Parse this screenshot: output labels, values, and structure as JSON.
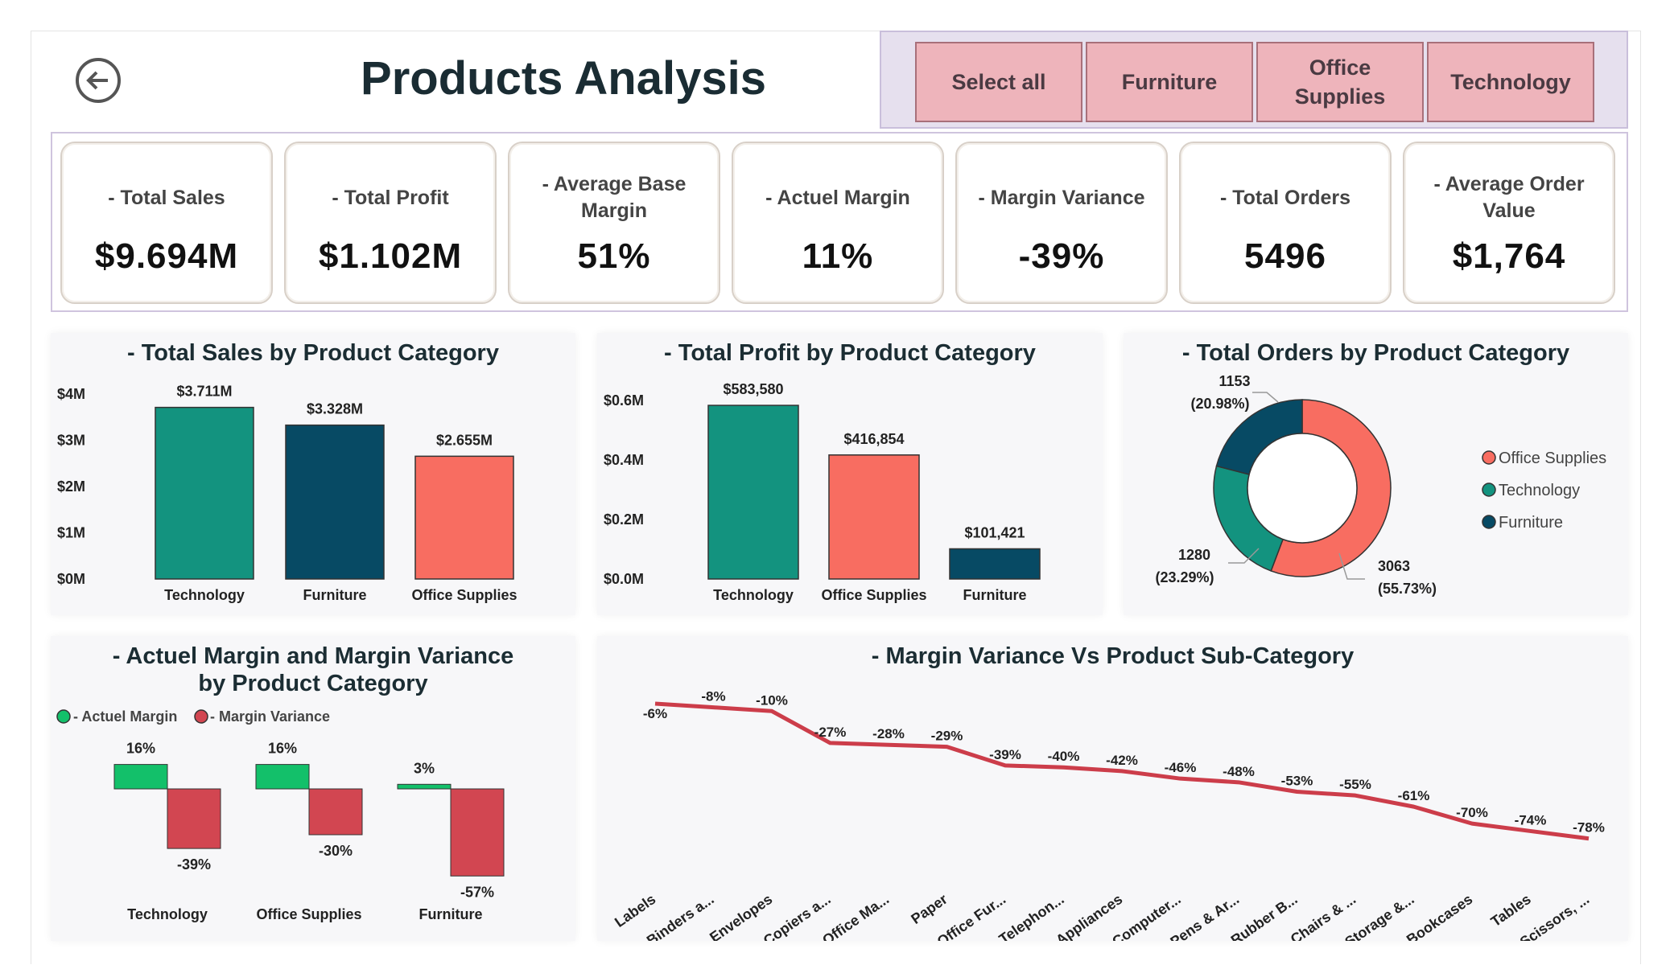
{
  "header": {
    "title": "Products Analysis",
    "back_icon": "back-arrow-icon"
  },
  "slicer": {
    "buttons": [
      "Select all",
      "Furniture",
      "Office Supplies",
      "Technology"
    ],
    "button_color": "#eeb4bb"
  },
  "kpis": [
    {
      "label": "- Total Sales",
      "value": "$9.694M"
    },
    {
      "label": "- Total Profit",
      "value": "$1.102M"
    },
    {
      "label": "- Average Base Margin",
      "value": "51%"
    },
    {
      "label": "- Actuel Margin",
      "value": "11%"
    },
    {
      "label": "- Margin Variance",
      "value": "-39%"
    },
    {
      "label": "- Total Orders",
      "value": "5496"
    },
    {
      "label": "- Average Order Value",
      "value": "$1,764"
    }
  ],
  "colors": {
    "teal": "#13937f",
    "navy": "#074a64",
    "coral": "#f86d61",
    "green": "#13c06a",
    "red": "#d24651",
    "line_red": "#cc3d4a"
  },
  "chart_data": [
    {
      "id": "sales",
      "type": "bar",
      "title": "- Total Sales by Product Category",
      "categories": [
        "Technology",
        "Furniture",
        "Office Supplies"
      ],
      "values": [
        3.711,
        3.328,
        2.655
      ],
      "value_labels": [
        "$3.711M",
        "$3.328M",
        "$2.655M"
      ],
      "ticks": [
        "$0M",
        "$1M",
        "$2M",
        "$3M",
        "$4M"
      ],
      "ylim": [
        0,
        4
      ],
      "bar_colors": [
        "#13937f",
        "#074a64",
        "#f86d61"
      ]
    },
    {
      "id": "profit",
      "type": "bar",
      "title": "- Total Profit by Product Category",
      "categories": [
        "Technology",
        "Office Supplies",
        "Furniture"
      ],
      "values": [
        583580,
        416854,
        101421
      ],
      "value_labels": [
        "$583,580",
        "$416,854",
        "$101,421"
      ],
      "ticks": [
        "$0.0M",
        "$0.2M",
        "$0.4M",
        "$0.6M"
      ],
      "ylim": [
        0,
        600000
      ],
      "bar_colors": [
        "#13937f",
        "#f86d61",
        "#074a64"
      ]
    },
    {
      "id": "orders",
      "type": "pie",
      "title": "- Total Orders by Product Category",
      "slices": [
        {
          "name": "Office Supplies",
          "value": 3063,
          "label": "3063",
          "pct": "(55.73%)",
          "color": "#f86d61"
        },
        {
          "name": "Technology",
          "value": 1280,
          "label": "1280",
          "pct": "(23.29%)",
          "color": "#13937f"
        },
        {
          "name": "Furniture",
          "value": 1153,
          "label": "1153",
          "pct": "(20.98%)",
          "color": "#074a64"
        }
      ],
      "legend": [
        "Office Supplies",
        "Technology",
        "Furniture"
      ]
    },
    {
      "id": "margins",
      "type": "bar",
      "title": "- Actuel Margin and Margin Variance by Product Category",
      "categories": [
        "Technology",
        "Office Supplies",
        "Furniture"
      ],
      "series": [
        {
          "name": "- Actuel Margin",
          "values": [
            16,
            16,
            3
          ],
          "labels": [
            "16%",
            "16%",
            "3%"
          ],
          "color": "#13c06a"
        },
        {
          "name": "- Margin Variance",
          "values": [
            -39,
            -30,
            -57
          ],
          "labels": [
            "-39%",
            "-30%",
            "-57%"
          ],
          "color": "#d24651"
        }
      ]
    },
    {
      "id": "variance",
      "type": "line",
      "title": "- Margin Variance Vs Product Sub-Category",
      "categories": [
        "Labels",
        "Binders a...",
        "Envelopes",
        "Copiers a...",
        "Office Ma...",
        "Paper",
        "Office Fur...",
        "Telephon...",
        "Appliances",
        "Computer...",
        "Pens & Ar...",
        "Rubber B...",
        "Chairs & ...",
        "Storage &...",
        "Bookcases",
        "Tables",
        "Scissors, ..."
      ],
      "values": [
        -6,
        -8,
        -10,
        -27,
        -28,
        -29,
        -39,
        -40,
        -42,
        -46,
        -48,
        -53,
        -55,
        -61,
        -70,
        -74,
        -78
      ],
      "value_labels": [
        "-6%",
        "-8%",
        "-10%",
        "-27%",
        "-28%",
        "-29%",
        "-39%",
        "-40%",
        "-42%",
        "-46%",
        "-48%",
        "-53%",
        "-55%",
        "-61%",
        "-70%",
        "-74%",
        "-78%"
      ],
      "line_color": "#cc3d4a"
    }
  ]
}
